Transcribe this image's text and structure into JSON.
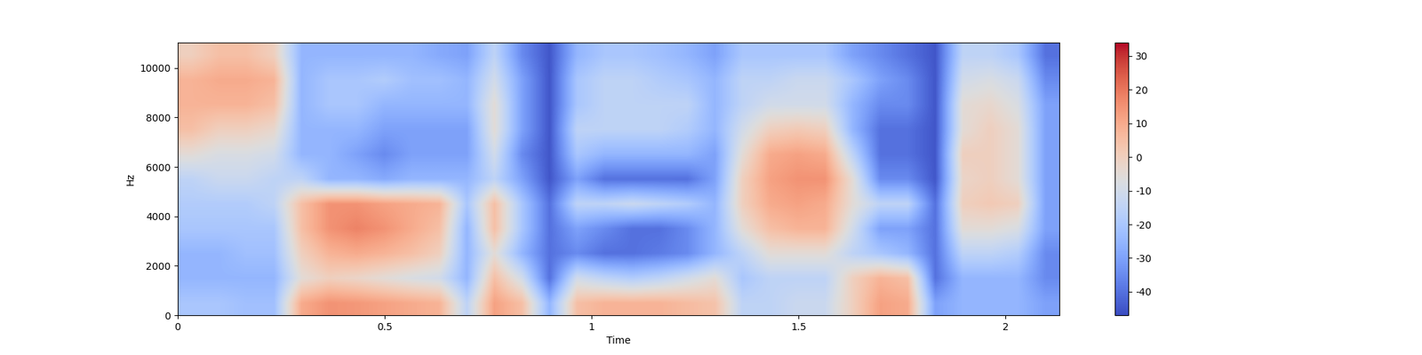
{
  "chart_data": {
    "type": "heatmap",
    "x_label": "Time",
    "y_label": "Hz",
    "xlim": [
      0,
      2.13
    ],
    "ylim": [
      0,
      11025
    ],
    "xticks": [
      0,
      0.5,
      1,
      1.5,
      2
    ],
    "yticks": [
      0,
      2000,
      4000,
      6000,
      8000,
      10000
    ],
    "color": "coolwarm",
    "color_range": [
      -47,
      34
    ],
    "color_ticks": [
      -40,
      -30,
      -20,
      -10,
      0,
      10,
      20,
      30
    ],
    "cells": [
      [
        -20,
        -20,
        -22,
        -22,
        10,
        15,
        14,
        12,
        10,
        8,
        -15,
        12,
        5,
        -25,
        5,
        8,
        8,
        8,
        6,
        4,
        -15,
        -15,
        -12,
        -12,
        0,
        12,
        10,
        -30,
        -25,
        -25,
        -25,
        -30
      ],
      [
        -25,
        -25,
        -25,
        -25,
        -5,
        0,
        -2,
        -5,
        -8,
        -10,
        -25,
        5,
        -10,
        -40,
        -10,
        -15,
        -18,
        -15,
        -10,
        -5,
        -20,
        -15,
        -15,
        -15,
        0,
        8,
        5,
        -40,
        -25,
        -25,
        -25,
        -35
      ],
      [
        -25,
        -25,
        -22,
        -22,
        0,
        8,
        10,
        8,
        5,
        0,
        -25,
        -5,
        -25,
        -40,
        -35,
        -40,
        -40,
        -38,
        -35,
        -25,
        -15,
        -5,
        -5,
        -5,
        -15,
        -20,
        -25,
        -40,
        -15,
        -15,
        -18,
        -35
      ],
      [
        -20,
        -20,
        -20,
        -20,
        5,
        15,
        18,
        15,
        10,
        5,
        -25,
        5,
        -20,
        -40,
        -30,
        -35,
        -40,
        -40,
        -35,
        -25,
        -5,
        5,
        8,
        8,
        -10,
        -30,
        -30,
        -40,
        -5,
        -5,
        -8,
        -30
      ],
      [
        -18,
        -18,
        -18,
        -15,
        5,
        15,
        15,
        12,
        10,
        8,
        -20,
        5,
        -20,
        -40,
        -15,
        -15,
        -12,
        -15,
        -18,
        -25,
        0,
        10,
        12,
        10,
        -5,
        -15,
        -15,
        -40,
        0,
        2,
        0,
        -30
      ],
      [
        -15,
        -12,
        -12,
        -15,
        -15,
        -25,
        -25,
        -28,
        -25,
        -25,
        -25,
        -15,
        -30,
        -45,
        -30,
        -40,
        -40,
        -40,
        -40,
        -30,
        0,
        12,
        15,
        15,
        -5,
        -35,
        -35,
        -45,
        -2,
        0,
        -5,
        -30
      ],
      [
        -5,
        -8,
        -8,
        -10,
        -25,
        -25,
        -30,
        -35,
        -30,
        -30,
        -30,
        -10,
        -35,
        -45,
        -20,
        -25,
        -25,
        -25,
        -25,
        -30,
        -5,
        10,
        12,
        10,
        -15,
        -40,
        -40,
        -45,
        0,
        0,
        -5,
        -30
      ],
      [
        5,
        0,
        0,
        -3,
        -25,
        -25,
        -25,
        -30,
        -30,
        -30,
        -30,
        -5,
        -30,
        -45,
        -15,
        -15,
        -15,
        -15,
        -18,
        -25,
        -10,
        0,
        2,
        0,
        -25,
        -40,
        -40,
        -45,
        -5,
        0,
        -5,
        -30
      ],
      [
        8,
        8,
        8,
        5,
        -25,
        -20,
        -20,
        -25,
        -25,
        -25,
        -25,
        -5,
        -30,
        -45,
        -20,
        -15,
        -15,
        -15,
        -15,
        -25,
        -15,
        -10,
        -10,
        -10,
        -25,
        -35,
        -35,
        -45,
        -5,
        -3,
        -8,
        -30
      ],
      [
        8,
        10,
        10,
        8,
        -25,
        -20,
        -20,
        -18,
        -22,
        -22,
        -25,
        -10,
        -30,
        -45,
        -20,
        -15,
        -15,
        -18,
        -20,
        -25,
        -15,
        -15,
        -12,
        -12,
        -20,
        -30,
        -35,
        -45,
        -10,
        -8,
        -12,
        -35
      ],
      [
        0,
        5,
        5,
        0,
        -25,
        -25,
        -25,
        -25,
        -25,
        -28,
        -30,
        -15,
        -35,
        -45,
        -25,
        -20,
        -20,
        -22,
        -25,
        -30,
        -20,
        -20,
        -20,
        -20,
        -30,
        -35,
        -40,
        -45,
        -15,
        -15,
        -20,
        -40
      ]
    ]
  }
}
